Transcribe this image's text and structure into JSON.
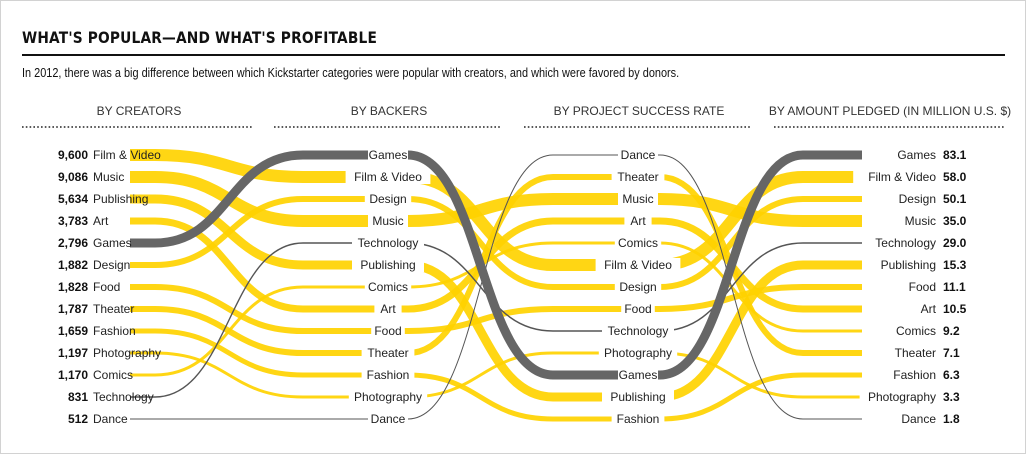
{
  "title": "WHAT'S POPULAR—AND WHAT'S PROFITABLE",
  "subtitle": "In 2012, there was a big difference between which Kickstarter categories were popular with creators, and which were favored by donors.",
  "colors": {
    "highlight": "#ffd200",
    "games": "#666666",
    "thin_line": "#555555"
  },
  "chart_data": {
    "type": "parallel-coordinates ranking (bump chart)",
    "columns": [
      "BY CREATORS",
      "BY BACKERS",
      "BY PROJECT SUCCESS RATE",
      "BY AMOUNT PLEDGED (IN MILLION U.S. $)"
    ],
    "rankings": {
      "by_creators": [
        "Film & Video",
        "Music",
        "Publishing",
        "Art",
        "Games",
        "Design",
        "Food",
        "Theater",
        "Fashion",
        "Photography",
        "Comics",
        "Technology",
        "Dance"
      ],
      "by_backers": [
        "Games",
        "Film & Video",
        "Design",
        "Music",
        "Technology",
        "Publishing",
        "Comics",
        "Art",
        "Food",
        "Theater",
        "Fashion",
        "Photography",
        "Dance"
      ],
      "by_success_rate": [
        "Dance",
        "Theater",
        "Music",
        "Art",
        "Comics",
        "Film & Video",
        "Design",
        "Food",
        "Technology",
        "Photography",
        "Games",
        "Publishing",
        "Fashion"
      ],
      "by_amount_pledged": [
        "Games",
        "Film & Video",
        "Design",
        "Music",
        "Technology",
        "Publishing",
        "Food",
        "Art",
        "Comics",
        "Theater",
        "Fashion",
        "Photography",
        "Dance"
      ]
    },
    "creators_values": [
      "9,600",
      "9,086",
      "5,634",
      "3,783",
      "2,796",
      "1,882",
      "1,828",
      "1,787",
      "1,659",
      "1,197",
      "1,170",
      "831",
      "512"
    ],
    "pledged_values": [
      "83.1",
      "58.0",
      "50.1",
      "35.0",
      "29.0",
      "15.3",
      "11.1",
      "10.5",
      "9.2",
      "7.1",
      "6.3",
      "3.3",
      "1.8"
    ],
    "category_styles": {
      "Film & Video": {
        "color": "#ffd200",
        "width": 12
      },
      "Music": {
        "color": "#ffd200",
        "width": 12
      },
      "Publishing": {
        "color": "#ffd200",
        "width": 9
      },
      "Art": {
        "color": "#ffd200",
        "width": 7
      },
      "Games": {
        "color": "#666666",
        "width": 9
      },
      "Design": {
        "color": "#ffd200",
        "width": 6
      },
      "Food": {
        "color": "#ffd200",
        "width": 6
      },
      "Theater": {
        "color": "#ffd200",
        "width": 6
      },
      "Fashion": {
        "color": "#ffd200",
        "width": 5
      },
      "Photography": {
        "color": "#ffd200",
        "width": 3
      },
      "Comics": {
        "color": "#ffd200",
        "width": 3
      },
      "Technology": {
        "color": "#555555",
        "width": 1.4
      },
      "Dance": {
        "color": "#555555",
        "width": 1
      }
    }
  }
}
